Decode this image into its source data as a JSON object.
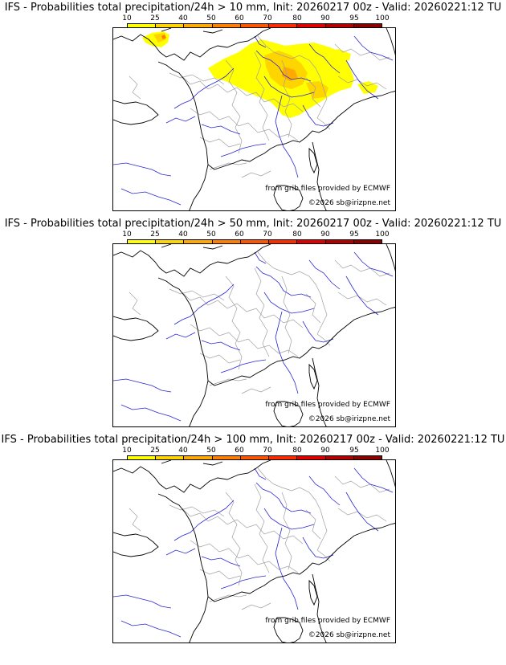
{
  "colors": {
    "scale": [
      "#ffff00",
      "#ffd500",
      "#ffaa00",
      "#ff8000",
      "#ff5500",
      "#ff2a00",
      "#e00000",
      "#b40000",
      "#8c0000",
      "#640000"
    ],
    "river": "#2828d2",
    "border": "#a0a0a0",
    "coast": "#000000"
  },
  "scale_labels": [
    "10",
    "25",
    "40",
    "50",
    "60",
    "70",
    "80",
    "90",
    "95",
    "100"
  ],
  "credit_ecmwf": "from grib files provided by ECMWF",
  "credit_site": "©2026 sb@irizpne.net",
  "panels": [
    {
      "title": "IFS - Probabilities total precipitation/24h > 10 mm, Init: 20260217 00z - Valid: 20260221:12 TU"
    },
    {
      "title": "IFS - Probabilities total precipitation/24h > 50 mm, Init: 20260217 00z - Valid: 20260221:12 TU"
    },
    {
      "title": "IFS - Probabilities total precipitation/24h > 100 mm, Init: 20260217 00z - Valid: 20260221:12 TU"
    }
  ]
}
